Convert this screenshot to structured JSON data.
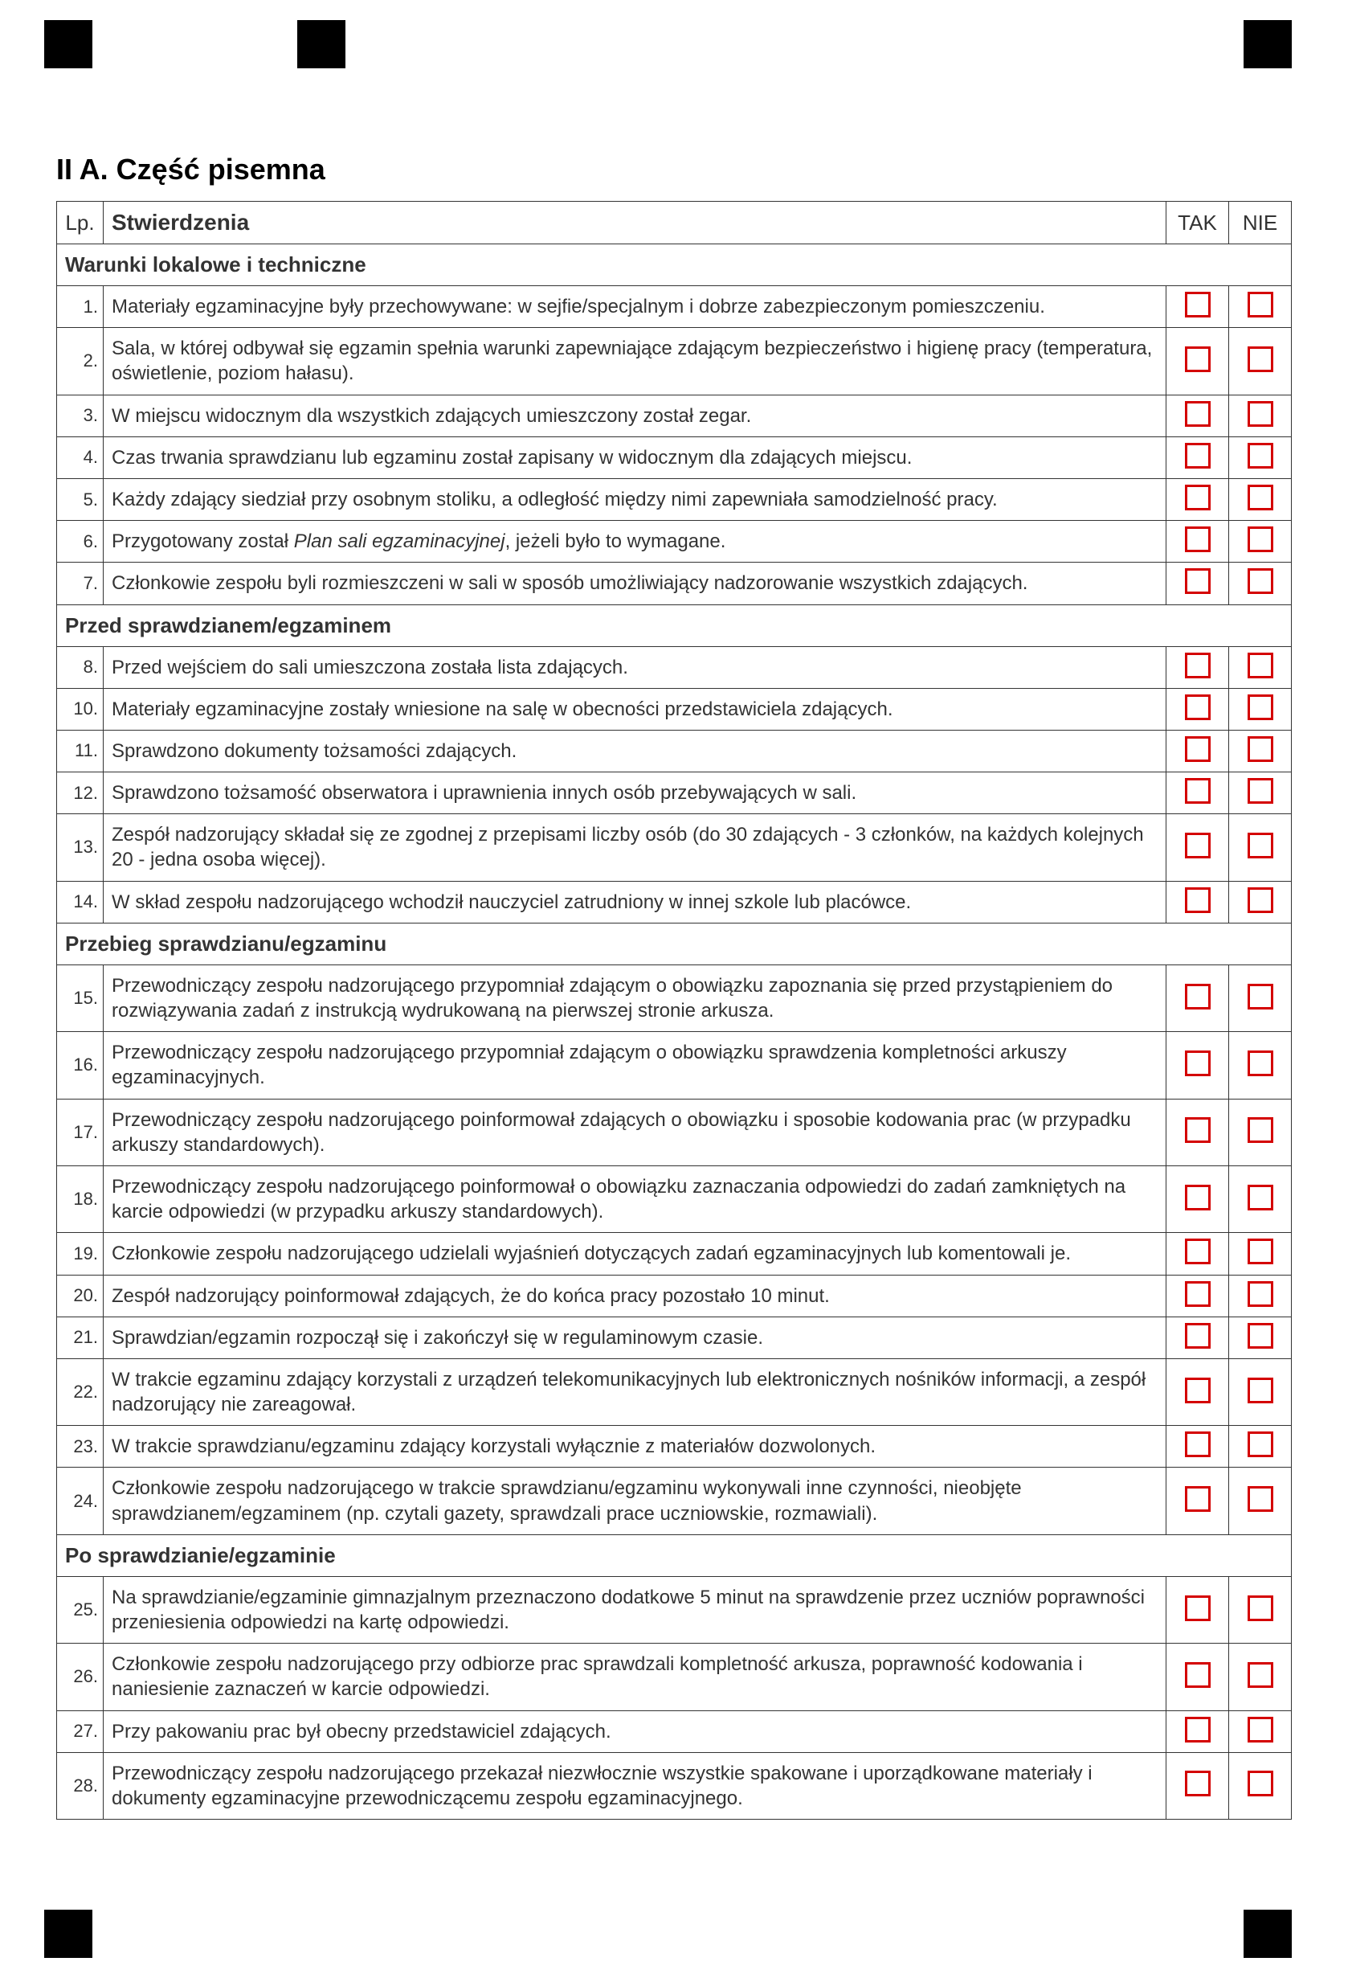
{
  "title": "II A. Część pisemna",
  "columns": {
    "lp": "Lp.",
    "statements": "Stwierdzenia",
    "yes": "TAK",
    "no": "NIE"
  },
  "sections": [
    {
      "heading": "Warunki lokalowe i techniczne",
      "rows": [
        {
          "n": "1.",
          "t": "Materiały egzaminacyjne były przechowywane: w sejfie/specjalnym i dobrze zabezpieczonym pomieszczeniu."
        },
        {
          "n": "2.",
          "t": "Sala, w której odbywał się egzamin spełnia warunki zapewniające zdającym bezpieczeństwo i higienę pracy (temperatura, oświetlenie, poziom hałasu)."
        },
        {
          "n": "3.",
          "t": "W miejscu widocznym dla wszystkich zdających umieszczony został zegar."
        },
        {
          "n": "4.",
          "t": "Czas trwania sprawdzianu lub egzaminu został zapisany w widocznym dla zdających miejscu."
        },
        {
          "n": "5.",
          "t": "Każdy zdający siedział przy osobnym stoliku, a odległość między nimi zapewniała samodzielność pracy."
        },
        {
          "n": "6.",
          "t": "Przygotowany został <span class=\"italic\">Plan sali egzaminacyjnej</span>, jeżeli było to wymagane."
        },
        {
          "n": "7.",
          "t": "Członkowie zespołu byli rozmieszczeni w sali w sposób umożliwiający nadzorowanie wszystkich zdających."
        }
      ]
    },
    {
      "heading": "Przed sprawdzianem/egzaminem",
      "rows": [
        {
          "n": "8.",
          "t": "Przed wejściem do sali umieszczona została lista zdających."
        },
        {
          "n": "10.",
          "t": "Materiały egzaminacyjne zostały wniesione na salę w obecności przedstawiciela zdających."
        },
        {
          "n": "11.",
          "t": "Sprawdzono dokumenty tożsamości zdających."
        },
        {
          "n": "12.",
          "t": "Sprawdzono tożsamość obserwatora i uprawnienia innych osób przebywających w sali."
        },
        {
          "n": "13.",
          "t": "Zespół nadzorujący składał się ze zgodnej z przepisami liczby osób (do 30 zdających - 3 członków, na każdych kolejnych 20 - jedna osoba więcej)."
        },
        {
          "n": "14.",
          "t": "W skład zespołu nadzorującego wchodził nauczyciel zatrudniony w innej szkole lub placówce."
        }
      ]
    },
    {
      "heading": "Przebieg sprawdzianu/egzaminu",
      "rows": [
        {
          "n": "15.",
          "t": "Przewodniczący zespołu nadzorującego przypomniał zdającym o obowiązku zapoznania się przed przystąpieniem do rozwiązywania zadań z instrukcją wydrukowaną na pierwszej stronie arkusza."
        },
        {
          "n": "16.",
          "t": "Przewodniczący zespołu nadzorującego przypomniał zdającym o obowiązku sprawdzenia kompletności arkuszy egzaminacyjnych."
        },
        {
          "n": "17.",
          "t": "Przewodniczący zespołu nadzorującego poinformował zdających o obowiązku i sposobie kodowania prac (w przypadku arkuszy standardowych)."
        },
        {
          "n": "18.",
          "t": "Przewodniczący zespołu nadzorującego poinformował o obowiązku zaznaczania odpowiedzi do zadań zamkniętych na karcie odpowiedzi (w przypadku arkuszy standardowych)."
        },
        {
          "n": "19.",
          "t": "Członkowie zespołu nadzorującego udzielali wyjaśnień dotyczących zadań egzaminacyjnych lub komentowali je."
        },
        {
          "n": "20.",
          "t": "Zespół nadzorujący poinformował zdających, że do końca pracy pozostało 10 minut."
        },
        {
          "n": "21.",
          "t": "Sprawdzian/egzamin rozpoczął się i zakończył się w regulaminowym czasie."
        },
        {
          "n": "22.",
          "t": "W trakcie egzaminu zdający korzystali z urządzeń telekomunikacyjnych lub elektronicznych nośników informacji, a zespół nadzorujący nie zareagował."
        },
        {
          "n": "23.",
          "t": "W trakcie sprawdzianu/egzaminu zdający korzystali wyłącznie z materiałów dozwolonych."
        },
        {
          "n": "24.",
          "t": "Członkowie zespołu nadzorującego w trakcie sprawdzianu/egzaminu wykonywali inne czynności, nieobjęte sprawdzianem/egzaminem (np. czytali gazety, sprawdzali prace uczniowskie, rozmawiali)."
        }
      ]
    },
    {
      "heading": "Po sprawdzianie/egzaminie",
      "rows": [
        {
          "n": "25.",
          "t": "Na sprawdzianie/egzaminie gimnazjalnym przeznaczono dodatkowe 5 minut na sprawdzenie przez uczniów poprawności przeniesienia odpowiedzi na kartę odpowiedzi."
        },
        {
          "n": "26.",
          "t": "Członkowie zespołu nadzorującego przy odbiorze prac sprawdzali kompletność arkusza, poprawność kodowania i naniesienie zaznaczeń w karcie odpowiedzi."
        },
        {
          "n": "27.",
          "t": "Przy pakowaniu prac był obecny przedstawiciel zdających."
        },
        {
          "n": "28.",
          "t": "Przewodniczący zespołu nadzorującego przekazał niezwłocznie wszystkie spakowane i uporządkowane materiały i dokumenty egzaminacyjne przewodniczącemu zespołu egzaminacyjnego."
        }
      ]
    }
  ],
  "style": {
    "checkbox_color": "#d40000",
    "border_color": "#333",
    "text_color": "#333",
    "marker_color": "#000",
    "font_family": "Arial, Helvetica, sans-serif",
    "title_fontsize": 36,
    "header_fontsize": 28,
    "cell_fontsize": 24,
    "lp_fontsize": 22
  }
}
